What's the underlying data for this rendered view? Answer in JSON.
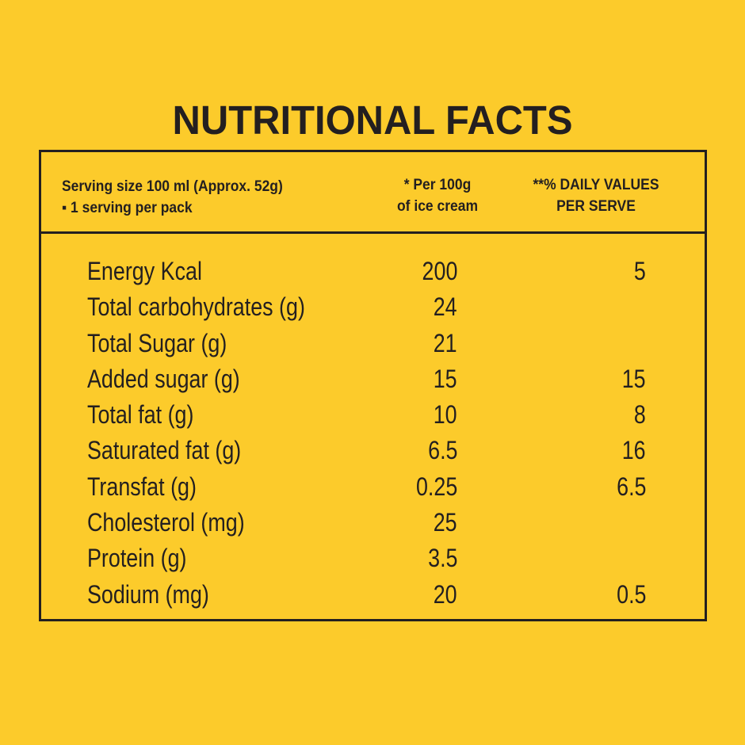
{
  "title": "NUTRITIONAL FACTS",
  "header": {
    "serving_line1": "Serving size 100 ml (Approx. 52g)",
    "serving_line2": "▪ 1 serving per pack",
    "per100_line1": "* Per 100g",
    "per100_line2": "of ice cream",
    "dv_line1": "**% DAILY VALUES",
    "dv_line2": "PER SERVE"
  },
  "rows": [
    {
      "label": "Energy Kcal",
      "per100": "200",
      "dv": "5"
    },
    {
      "label": "Total carbohydrates (g)",
      "per100": "24",
      "dv": ""
    },
    {
      "label": "Total Sugar (g)",
      "per100": "21",
      "dv": ""
    },
    {
      "label": "Added sugar (g)",
      "per100": "15",
      "dv": "15"
    },
    {
      "label": "Total fat (g)",
      "per100": "10",
      "dv": "8"
    },
    {
      "label": "Saturated fat (g)",
      "per100": "6.5",
      "dv": "16"
    },
    {
      "label": "Transfat (g)",
      "per100": "0.25",
      "dv": "6.5"
    },
    {
      "label": "Cholesterol (mg)",
      "per100": "25",
      "dv": ""
    },
    {
      "label": "Protein (g)",
      "per100": "3.5",
      "dv": ""
    },
    {
      "label": "Sodium (mg)",
      "per100": "20",
      "dv": "0.5"
    }
  ]
}
